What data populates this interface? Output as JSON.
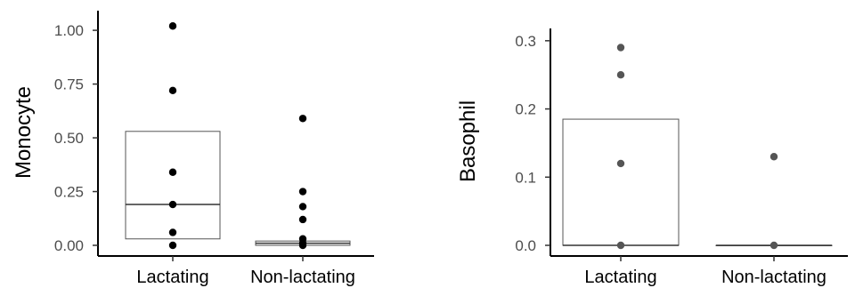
{
  "chart_data": [
    {
      "type": "box",
      "categories": [
        "Lactating",
        "Non-lactating"
      ],
      "ylabel": "Monocyte",
      "xlabel": "",
      "ylim": [
        0,
        1.05
      ],
      "yticks": [
        0.0,
        0.25,
        0.5,
        0.75,
        1.0
      ],
      "ytick_labels": [
        "0.00",
        "0.25",
        "0.50",
        "0.75",
        "1.00"
      ],
      "grid": false,
      "boxes": [
        {
          "category": "Lactating",
          "q1": 0.03,
          "median": 0.19,
          "q3": 0.53
        },
        {
          "category": "Non-lactating",
          "q1": 0.0,
          "median": 0.01,
          "q3": 0.02
        }
      ],
      "points": [
        {
          "category": "Lactating",
          "values": [
            1.02,
            0.72,
            0.34,
            0.19,
            0.06,
            0.0
          ]
        },
        {
          "category": "Non-lactating",
          "values": [
            0.59,
            0.25,
            0.18,
            0.12,
            0.03,
            0.01,
            0.0
          ]
        }
      ],
      "point_color": "#000000"
    },
    {
      "type": "box",
      "categories": [
        "Lactating",
        "Non-lactating"
      ],
      "ylabel": "Basophil",
      "xlabel": "",
      "ylim": [
        0,
        0.305
      ],
      "yticks": [
        0.0,
        0.1,
        0.2,
        0.3
      ],
      "ytick_labels": [
        "0.0",
        "0.1",
        "0.2",
        "0.3"
      ],
      "grid": false,
      "boxes": [
        {
          "category": "Lactating",
          "q1": 0.0,
          "median": 0.0,
          "q3": 0.185
        },
        {
          "category": "Non-lactating",
          "q1": 0.0,
          "median": 0.0,
          "q3": 0.0
        }
      ],
      "points": [
        {
          "category": "Lactating",
          "values": [
            0.29,
            0.25,
            0.12,
            0.0
          ]
        },
        {
          "category": "Non-lactating",
          "values": [
            0.13,
            0.0
          ]
        }
      ],
      "point_color": "#555555"
    }
  ]
}
